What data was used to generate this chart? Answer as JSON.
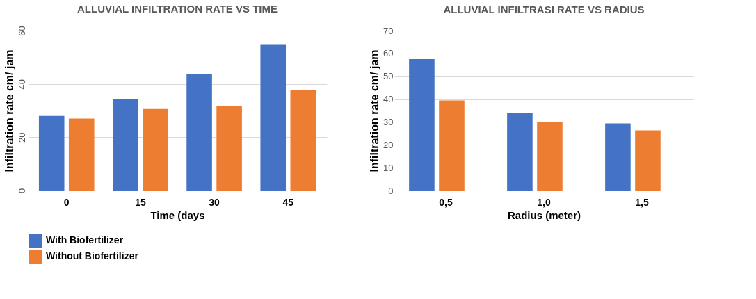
{
  "chart_data": [
    {
      "type": "bar",
      "title": "ALLUVIAL INFILTRATION RATE VS TIME",
      "xlabel": "Time  (days",
      "ylabel": "Infiltration rate  cm/ jam",
      "categories": [
        "0",
        "15",
        "30",
        "45"
      ],
      "series": [
        {
          "name": "With Biofertilizer",
          "color": "#4472c4",
          "values": [
            28.0,
            34.3,
            43.8,
            54.9
          ]
        },
        {
          "name": "Without Biofertilizer",
          "color": "#ed7d31",
          "values": [
            27.0,
            30.6,
            31.8,
            37.8
          ]
        }
      ],
      "ylim": [
        0,
        60
      ],
      "yticks": [
        0,
        20,
        40,
        60
      ],
      "grid": "y",
      "legend": "bottom"
    },
    {
      "type": "bar",
      "title": "ALLUVIAL INFILTRASI RATE VS RADIUS",
      "xlabel": "Radius (meter)",
      "ylabel": "Infiltration  rate cm/ jam",
      "categories": [
        "0,5",
        "1,0",
        "1,5"
      ],
      "series": [
        {
          "name": "With Biofertilizer",
          "color": "#4472c4",
          "values": [
            57.5,
            34.0,
            29.4
          ]
        },
        {
          "name": "Without Biofertilizer",
          "color": "#ed7d31",
          "values": [
            39.4,
            30.0,
            26.3
          ]
        }
      ],
      "ylim": [
        0,
        70
      ],
      "yticks": [
        0,
        10,
        20,
        30,
        40,
        50,
        60,
        70
      ],
      "grid": "y",
      "legend": "bottom"
    }
  ]
}
